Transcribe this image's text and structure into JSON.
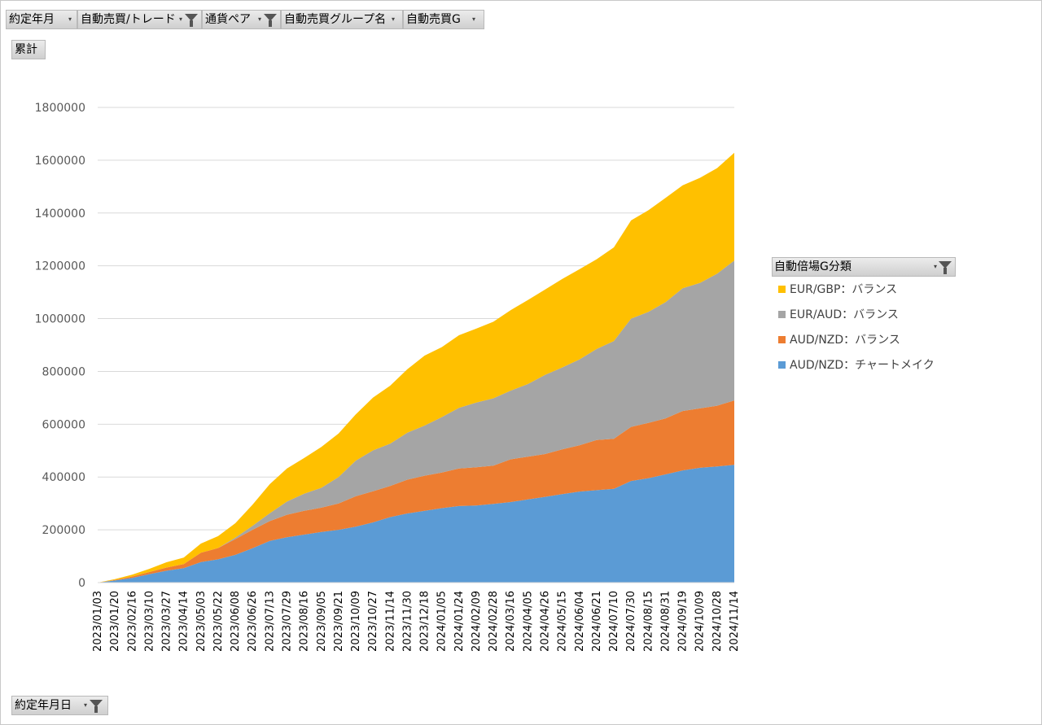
{
  "filters": [
    {
      "label": "約定年月",
      "icon": "dropdown-icon"
    },
    {
      "label": "自動売買/トレード",
      "icon": "filter-funnel-icon"
    },
    {
      "label": "通貨ペア",
      "icon": "filter-funnel-icon"
    },
    {
      "label": "自動売買グループ名",
      "icon": "dropdown-icon"
    },
    {
      "label": "自動売買G",
      "icon": "dropdown-icon"
    }
  ],
  "values_button": "累計",
  "axis_button": "約定年月日",
  "legend_title": "自動倍場G分類",
  "chart_data": {
    "type": "area",
    "stacked": true,
    "ylim": [
      0,
      1800000
    ],
    "yticks": [
      "0",
      "200000",
      "400000",
      "600000",
      "800000",
      "1000000",
      "1200000",
      "1400000",
      "1600000",
      "1800000"
    ],
    "x": [
      "2023/01/03",
      "2023/01/20",
      "2023/02/16",
      "2023/03/10",
      "2023/03/27",
      "2023/04/14",
      "2023/05/03",
      "2023/05/22",
      "2023/06/08",
      "2023/06/26",
      "2023/07/13",
      "2023/07/29",
      "2023/08/16",
      "2023/09/05",
      "2023/09/21",
      "2023/10/09",
      "2023/10/27",
      "2023/11/14",
      "2023/11/30",
      "2023/12/18",
      "2024/01/05",
      "2024/01/24",
      "2024/02/09",
      "2024/02/28",
      "2024/03/16",
      "2024/04/05",
      "2024/04/26",
      "2024/05/15",
      "2024/06/04",
      "2024/06/21",
      "2024/07/10",
      "2024/07/30",
      "2024/08/15",
      "2024/08/31",
      "2024/09/19",
      "2024/10/09",
      "2024/10/28",
      "2024/11/14"
    ],
    "grid": true,
    "legend_position": "right",
    "series": [
      {
        "name": "AUD/NZD：チャートメイク",
        "color": "#5b9bd5",
        "values": [
          0,
          8000,
          18000,
          32000,
          45000,
          55000,
          78000,
          88000,
          105000,
          130000,
          158000,
          172000,
          182000,
          192000,
          200000,
          212000,
          228000,
          248000,
          262000,
          272000,
          282000,
          290000,
          292000,
          298000,
          305000,
          315000,
          325000,
          335000,
          345000,
          350000,
          355000,
          385000,
          395000,
          410000,
          425000,
          435000,
          440000,
          446000
        ]
      },
      {
        "name": "AUD/NZD：バランス",
        "color": "#ed7d31",
        "values": [
          0,
          2000,
          5000,
          8000,
          12000,
          15000,
          35000,
          43000,
          60000,
          70000,
          75000,
          85000,
          90000,
          92000,
          100000,
          115000,
          118000,
          118000,
          128000,
          133000,
          135000,
          142000,
          145000,
          145000,
          162000,
          162000,
          162000,
          170000,
          175000,
          190000,
          190000,
          205000,
          210000,
          212000,
          225000,
          225000,
          230000,
          244000
        ]
      },
      {
        "name": "EUR/AUD：バランス",
        "color": "#a5a5a5",
        "values": [
          0,
          0,
          0,
          0,
          0,
          0,
          0,
          0,
          5000,
          15000,
          30000,
          50000,
          65000,
          75000,
          100000,
          135000,
          155000,
          160000,
          178000,
          190000,
          210000,
          230000,
          245000,
          255000,
          260000,
          275000,
          300000,
          310000,
          325000,
          345000,
          370000,
          410000,
          420000,
          440000,
          465000,
          475000,
          500000,
          530000
        ]
      },
      {
        "name": "EUR/GBP：バランス",
        "color": "#ffc000",
        "values": [
          0,
          3000,
          7000,
          12000,
          20000,
          25000,
          35000,
          45000,
          55000,
          80000,
          110000,
          125000,
          135000,
          155000,
          165000,
          175000,
          200000,
          220000,
          240000,
          265000,
          265000,
          275000,
          280000,
          290000,
          305000,
          318000,
          323000,
          335000,
          342000,
          340000,
          355000,
          372000,
          385000,
          395000,
          390000,
          398000,
          400000,
          408000
        ]
      }
    ]
  }
}
